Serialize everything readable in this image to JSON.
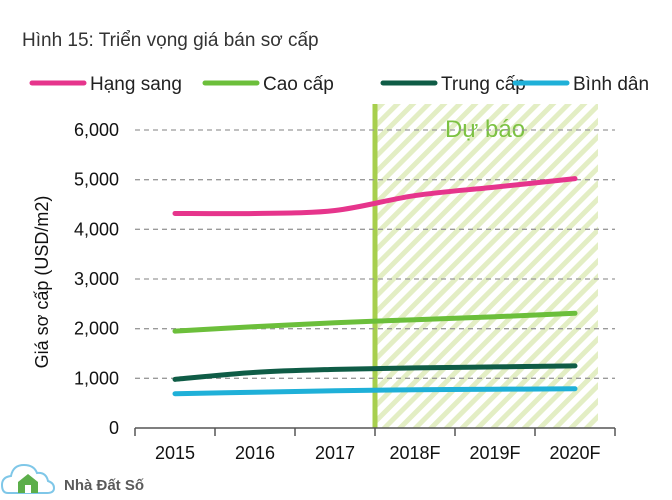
{
  "chart_data": {
    "type": "line",
    "title": "Hình 15: Triển vọng giá bán sơ cấp",
    "ylabel": "Giá sơ cấp (USD/m2)",
    "xlabel": "",
    "categories": [
      "2015",
      "2016",
      "2017",
      "2018F",
      "2019F",
      "2020F"
    ],
    "ylim": [
      0,
      6000
    ],
    "yticks": [
      "0",
      "1,000",
      "2,000",
      "3,000",
      "4,000",
      "5,000",
      "6,000"
    ],
    "grid": true,
    "legend": "top",
    "forecast_label": "Dự báo",
    "forecast_start": "2018F",
    "series": [
      {
        "name": "Hạng sang",
        "color": "#e6358c",
        "values": [
          4320,
          4320,
          4380,
          4680,
          4850,
          5020
        ]
      },
      {
        "name": "Cao cấp",
        "color": "#6cbf3b",
        "values": [
          1950,
          2040,
          2120,
          2180,
          2240,
          2310
        ]
      },
      {
        "name": "Trung cấp",
        "color": "#0f5c46",
        "values": [
          980,
          1120,
          1180,
          1210,
          1230,
          1250
        ]
      },
      {
        "name": "Bình dân",
        "color": "#1fb0d8",
        "values": [
          690,
          720,
          750,
          770,
          780,
          790
        ]
      }
    ]
  },
  "logo": {
    "text": "Nhà Đất Số",
    "color": "#4fa64d"
  }
}
